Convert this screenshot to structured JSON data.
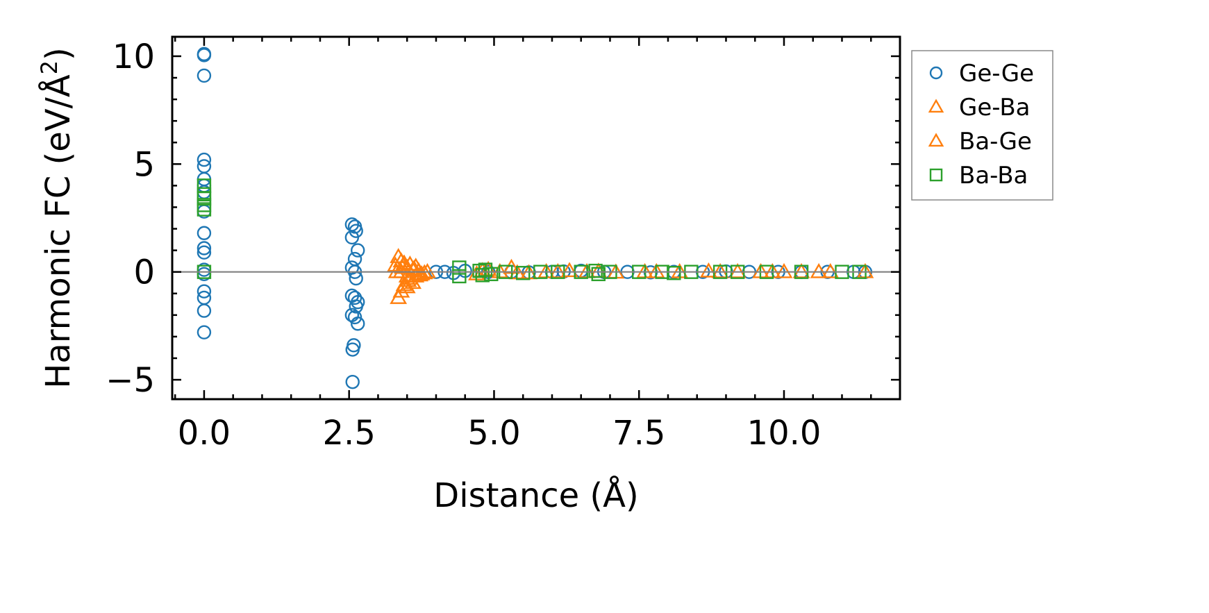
{
  "chart_data": {
    "type": "scatter",
    "title": "",
    "xlabel": "Distance (Å)",
    "ylabel": "Harmonic FC (eV/Å",
    "ylabel_superscript": "2",
    "ylabel_close": ")",
    "xlim": [
      -0.55,
      12.0
    ],
    "ylim": [
      -5.9,
      10.9
    ],
    "xticks": [
      0.0,
      2.5,
      5.0,
      7.5,
      10.0
    ],
    "xtick_labels": [
      "0.0",
      "2.5",
      "5.0",
      "7.5",
      "10.0"
    ],
    "yticks": [
      10,
      5,
      0,
      -5
    ],
    "ytick_labels": [
      "10",
      "5",
      "0",
      "−5"
    ],
    "reference_line_y": 0,
    "legend": {
      "position": "outside-right-top",
      "entries": [
        "Ge-Ge",
        "Ge-Ba",
        "Ba-Ge",
        "Ba-Ba"
      ]
    },
    "series": [
      {
        "name": "Ge-Ge",
        "marker": "circle",
        "color": "#1f77b4",
        "points": [
          [
            0,
            10.1
          ],
          [
            0,
            10.05
          ],
          [
            0,
            9.1
          ],
          [
            0,
            5.2
          ],
          [
            0,
            4.9
          ],
          [
            0,
            4.3
          ],
          [
            0,
            4.0
          ],
          [
            0,
            3.7
          ],
          [
            0,
            2.8
          ],
          [
            0,
            1.8
          ],
          [
            0,
            1.1
          ],
          [
            0,
            0.9
          ],
          [
            0,
            0.1
          ],
          [
            0,
            -0.1
          ],
          [
            0,
            -0.9
          ],
          [
            0,
            -1.2
          ],
          [
            0,
            -1.8
          ],
          [
            0,
            -2.8
          ],
          [
            2.55,
            2.2
          ],
          [
            2.6,
            2.1
          ],
          [
            2.62,
            1.9
          ],
          [
            2.55,
            1.6
          ],
          [
            2.65,
            1.0
          ],
          [
            2.6,
            0.6
          ],
          [
            2.55,
            0.2
          ],
          [
            2.6,
            0.0
          ],
          [
            2.62,
            -0.3
          ],
          [
            2.55,
            -1.1
          ],
          [
            2.6,
            -1.2
          ],
          [
            2.65,
            -1.4
          ],
          [
            2.62,
            -1.6
          ],
          [
            2.55,
            -2.0
          ],
          [
            2.6,
            -2.1
          ],
          [
            2.65,
            -2.4
          ],
          [
            2.58,
            -3.4
          ],
          [
            2.56,
            -3.6
          ],
          [
            2.56,
            -5.1
          ],
          [
            4.0,
            0.0
          ],
          [
            4.15,
            0.0
          ],
          [
            4.3,
            -0.05
          ],
          [
            4.5,
            0.05
          ],
          [
            4.9,
            0.0
          ],
          [
            5.3,
            0.0
          ],
          [
            5.6,
            -0.02
          ],
          [
            6.0,
            0.0
          ],
          [
            6.2,
            0.02
          ],
          [
            6.5,
            0.05
          ],
          [
            6.9,
            0.0
          ],
          [
            7.3,
            0.0
          ],
          [
            7.7,
            -0.02
          ],
          [
            8.1,
            0.0
          ],
          [
            8.6,
            0.0
          ],
          [
            9.0,
            0.02
          ],
          [
            9.4,
            0.0
          ],
          [
            9.9,
            0.0
          ],
          [
            10.3,
            0.0
          ],
          [
            10.75,
            0.0
          ],
          [
            11.2,
            0.0
          ],
          [
            11.4,
            0.0
          ]
        ]
      },
      {
        "name": "Ge-Ba",
        "marker": "triangle",
        "color": "#ff7f0e",
        "points": [
          [
            3.35,
            -1.2
          ],
          [
            3.4,
            -0.9
          ],
          [
            3.45,
            -0.6
          ],
          [
            3.5,
            -0.7
          ],
          [
            3.55,
            -0.3
          ],
          [
            3.6,
            -0.5
          ],
          [
            3.65,
            -0.2
          ],
          [
            3.3,
            0.3
          ],
          [
            3.35,
            0.7
          ],
          [
            3.4,
            0.5
          ],
          [
            3.45,
            0.4
          ],
          [
            3.5,
            0.2
          ],
          [
            3.55,
            0.35
          ],
          [
            3.6,
            0.1
          ],
          [
            3.7,
            0.05
          ],
          [
            3.75,
            -0.1
          ],
          [
            3.8,
            -0.05
          ],
          [
            3.65,
            0.25
          ],
          [
            3.4,
            0.0
          ],
          [
            3.5,
            -0.2
          ],
          [
            4.7,
            -0.1
          ],
          [
            4.8,
            0.05
          ],
          [
            5.1,
            0.0
          ],
          [
            5.3,
            0.2
          ],
          [
            5.6,
            -0.05
          ],
          [
            6.1,
            0.0
          ],
          [
            6.3,
            0.05
          ],
          [
            6.6,
            0.0
          ],
          [
            7.1,
            -0.02
          ],
          [
            7.6,
            0.0
          ],
          [
            8.2,
            0.0
          ],
          [
            8.7,
            0.03
          ],
          [
            9.2,
            0.0
          ],
          [
            9.6,
            0.0
          ],
          [
            10.0,
            0.0
          ],
          [
            10.6,
            0.0
          ],
          [
            11.4,
            0.0
          ]
        ]
      },
      {
        "name": "Ba-Ge",
        "marker": "triangle",
        "color": "#ff7f0e",
        "points": [
          [
            3.32,
            0.0
          ],
          [
            3.42,
            0.2
          ],
          [
            3.52,
            -0.4
          ],
          [
            3.62,
            0.15
          ],
          [
            3.72,
            -0.15
          ],
          [
            3.85,
            0.0
          ],
          [
            4.9,
            0.1
          ],
          [
            5.4,
            -0.05
          ],
          [
            5.9,
            0.0
          ],
          [
            6.8,
            0.02
          ],
          [
            7.8,
            0.0
          ],
          [
            8.9,
            0.0
          ],
          [
            9.8,
            0.0
          ],
          [
            10.3,
            0.0
          ],
          [
            10.8,
            0.0
          ]
        ]
      },
      {
        "name": "Ba-Ba",
        "marker": "square",
        "color": "#2ca02c",
        "points": [
          [
            0,
            4.0
          ],
          [
            0,
            3.6
          ],
          [
            0,
            3.4
          ],
          [
            0,
            3.1
          ],
          [
            0,
            2.9
          ],
          [
            0,
            0.0
          ],
          [
            4.4,
            0.2
          ],
          [
            4.4,
            -0.2
          ],
          [
            4.75,
            0.05
          ],
          [
            4.8,
            -0.15
          ],
          [
            4.85,
            0.1
          ],
          [
            4.95,
            -0.1
          ],
          [
            5.2,
            0.0
          ],
          [
            5.5,
            -0.05
          ],
          [
            5.8,
            0.0
          ],
          [
            6.1,
            0.0
          ],
          [
            6.5,
            0.0
          ],
          [
            6.75,
            0.05
          ],
          [
            6.8,
            -0.1
          ],
          [
            7.0,
            0.0
          ],
          [
            7.5,
            0.0
          ],
          [
            7.9,
            0.0
          ],
          [
            8.1,
            -0.05
          ],
          [
            8.4,
            0.0
          ],
          [
            8.9,
            0.0
          ],
          [
            9.2,
            0.0
          ],
          [
            9.7,
            0.0
          ],
          [
            10.3,
            0.0
          ],
          [
            11.0,
            0.0
          ],
          [
            11.3,
            0.0
          ]
        ]
      }
    ]
  }
}
